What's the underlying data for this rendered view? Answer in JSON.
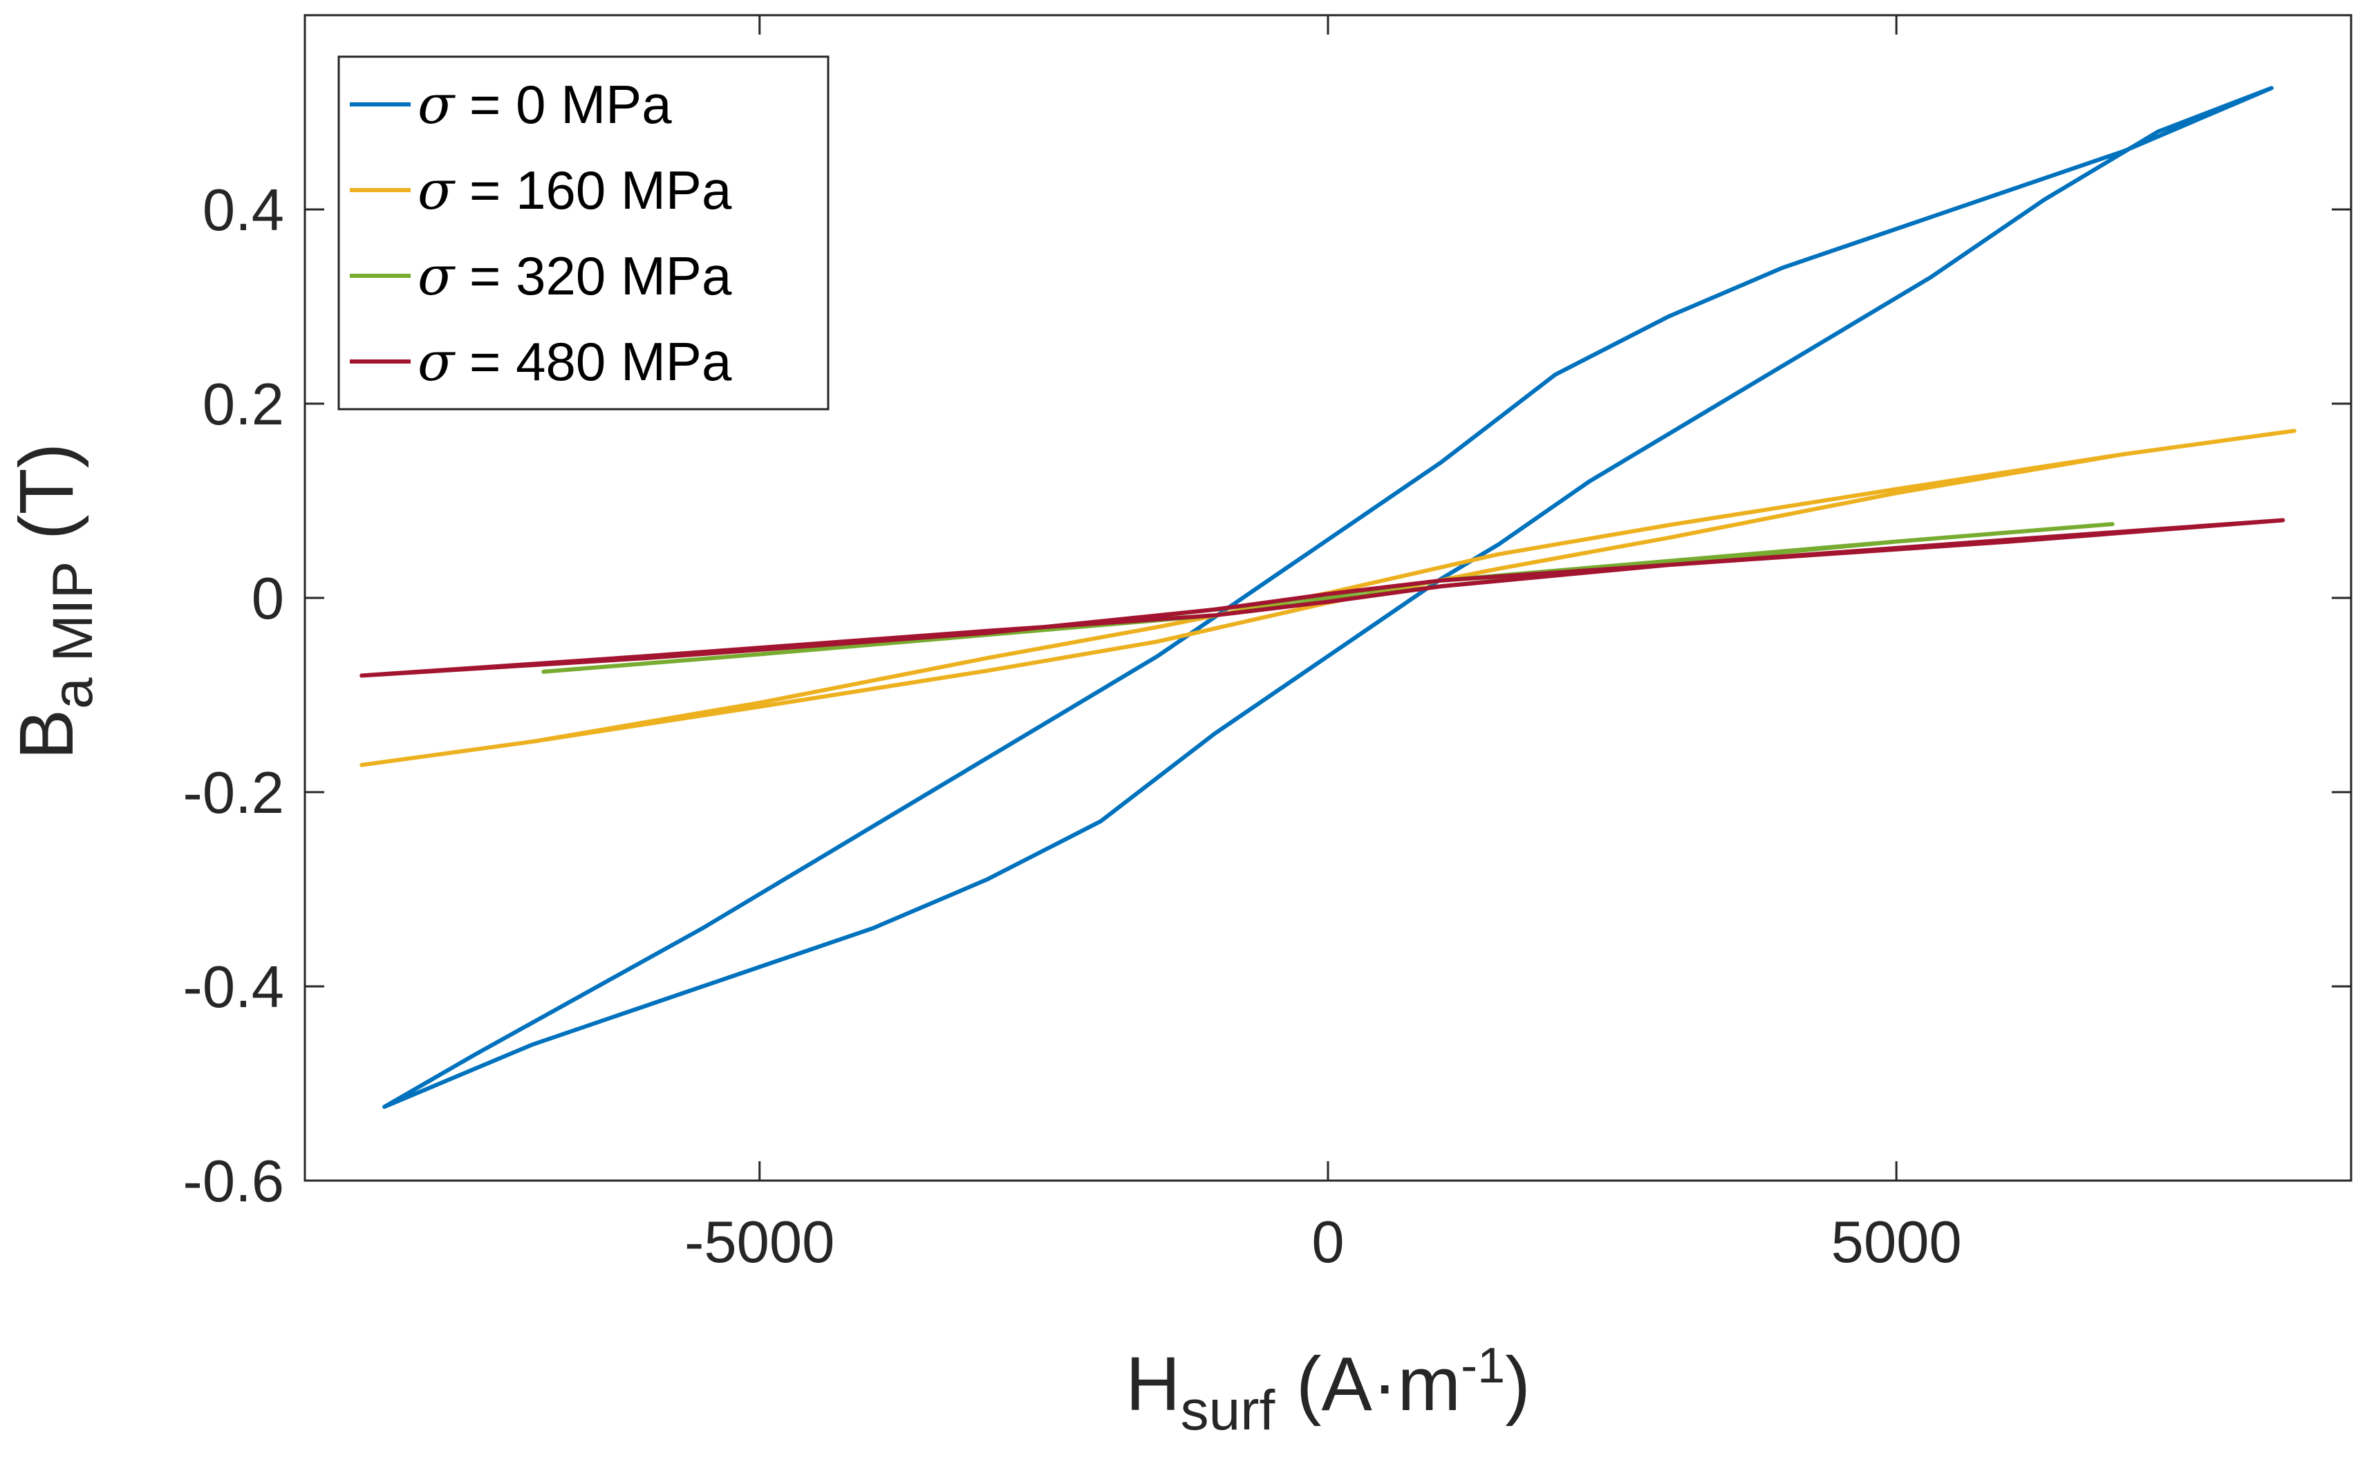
{
  "chart_data": {
    "type": "line",
    "title": "",
    "xlabel": {
      "main": "H",
      "sub": "surf",
      "rest": " (A·m",
      "sup": "-1",
      "close": ")"
    },
    "ylabel": {
      "main": "B",
      "sub": "a MIP",
      "rest": " (T)"
    },
    "xlim": [
      -9000,
      9000
    ],
    "ylim": [
      -0.6,
      0.6
    ],
    "xticks": [
      -5000,
      0,
      5000
    ],
    "xtick_labels": [
      "-5000",
      "0",
      "5000"
    ],
    "yticks": [
      -0.6,
      -0.4,
      -0.2,
      0,
      0.2,
      0.4
    ],
    "ytick_labels": [
      "-0.6",
      "-0.4",
      "-0.2",
      "0",
      "0.2",
      "0.4"
    ],
    "grid": false,
    "legend_position": "top-left",
    "legend_symbol": "σ",
    "series": [
      {
        "name": "σ = 0 MPa",
        "label_rest": " = 0 MPa",
        "color": "#0072BD",
        "x": [
          -8300,
          -7500,
          -6500,
          -5500,
          -4500,
          -3500,
          -2500,
          -1500,
          -1000,
          -500,
          0,
          500,
          1000,
          2000,
          3000,
          4000,
          5000,
          6000,
          7000,
          8000,
          8300,
          7300,
          6300,
          5300,
          4300,
          3300,
          2300,
          1500,
          1000,
          500,
          0,
          -500,
          -1000,
          -2000,
          -3000,
          -4000,
          -5000,
          -6000,
          -7000,
          -8300
        ],
        "y": [
          -0.524,
          -0.47,
          -0.405,
          -0.34,
          -0.27,
          -0.2,
          -0.13,
          -0.06,
          -0.02,
          0.02,
          0.06,
          0.1,
          0.14,
          0.23,
          0.29,
          0.34,
          0.38,
          0.42,
          0.46,
          0.51,
          0.525,
          0.48,
          0.41,
          0.33,
          0.26,
          0.19,
          0.12,
          0.055,
          0.02,
          -0.02,
          -0.06,
          -0.1,
          -0.14,
          -0.23,
          -0.29,
          -0.34,
          -0.38,
          -0.42,
          -0.46,
          -0.524
        ]
      },
      {
        "name": "σ = 160 MPa",
        "label_rest": " = 160 MPa",
        "color": "#EDB120",
        "x": [
          -8500,
          -7000,
          -5000,
          -3000,
          -1500,
          0,
          1500,
          3000,
          5000,
          7000,
          8500,
          7000,
          5000,
          3000,
          1500,
          0,
          -1500,
          -3000,
          -5000,
          -7000,
          -8500
        ],
        "y": [
          -0.172,
          -0.148,
          -0.108,
          -0.062,
          -0.03,
          0.005,
          0.045,
          0.075,
          0.112,
          0.148,
          0.172,
          0.148,
          0.108,
          0.062,
          0.03,
          -0.005,
          -0.045,
          -0.075,
          -0.112,
          -0.148,
          -0.172
        ]
      },
      {
        "name": "σ = 320 MPa",
        "label_rest": " = 320 MPa",
        "color": "#77AC30",
        "x": [
          -6900,
          -5000,
          -3000,
          -1000,
          0,
          1000,
          3000,
          5000,
          6900,
          5000,
          3000,
          1000,
          0,
          -1000,
          -3000,
          -5000,
          -6900
        ],
        "y": [
          -0.076,
          -0.058,
          -0.038,
          -0.012,
          0.002,
          0.018,
          0.038,
          0.058,
          0.076,
          0.058,
          0.036,
          0.012,
          -0.002,
          -0.018,
          -0.038,
          -0.058,
          -0.076
        ]
      },
      {
        "name": "σ = 480 MPa",
        "label_rest": " = 480 MPa",
        "color": "#A2142F",
        "x": [
          -8500,
          -6000,
          -3000,
          -1000,
          0,
          1000,
          3000,
          6000,
          8400,
          6000,
          3000,
          1000,
          0,
          -1000,
          -3000,
          -6000,
          -8500
        ],
        "y": [
          -0.08,
          -0.062,
          -0.036,
          -0.012,
          0.004,
          0.018,
          0.034,
          0.058,
          0.08,
          0.06,
          0.034,
          0.012,
          -0.004,
          -0.018,
          -0.034,
          -0.06,
          -0.08
        ]
      }
    ]
  }
}
